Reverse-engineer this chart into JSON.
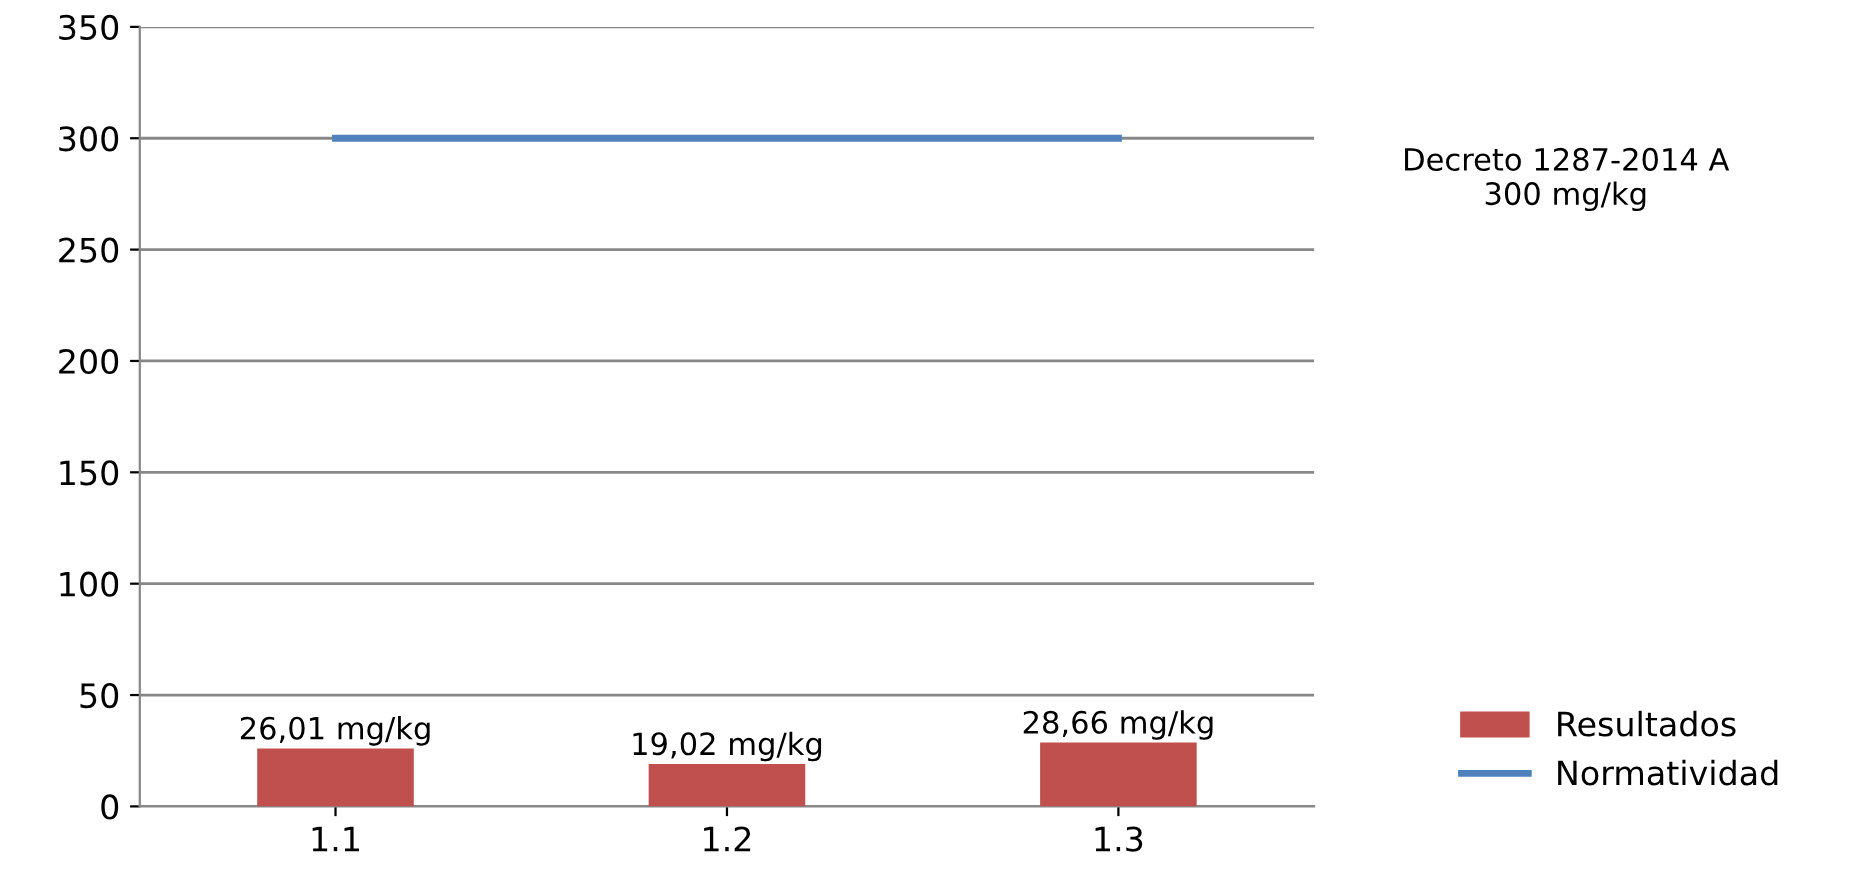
{
  "chart_data": {
    "type": "bar",
    "categories": [
      "1.1",
      "1.2",
      "1.3"
    ],
    "series": [
      {
        "name": "Resultados",
        "color": "#c0504d",
        "values": [
          26.01,
          19.02,
          28.66
        ],
        "value_labels": [
          "26,01 mg/kg",
          "19,02 mg/kg",
          "28,66 mg/kg"
        ]
      },
      {
        "name": "Normatividad",
        "type": "line",
        "color": "#4f81bd",
        "values": [
          300,
          300,
          300
        ]
      }
    ],
    "annotations": [
      "Decreto 1287-2014 A\n300 mg/kg"
    ],
    "ylim": [
      0,
      350
    ],
    "yticks": [
      0,
      50,
      100,
      150,
      200,
      250,
      300,
      350
    ],
    "grid": "y",
    "legend": "bottom right",
    "marker": "none"
  }
}
